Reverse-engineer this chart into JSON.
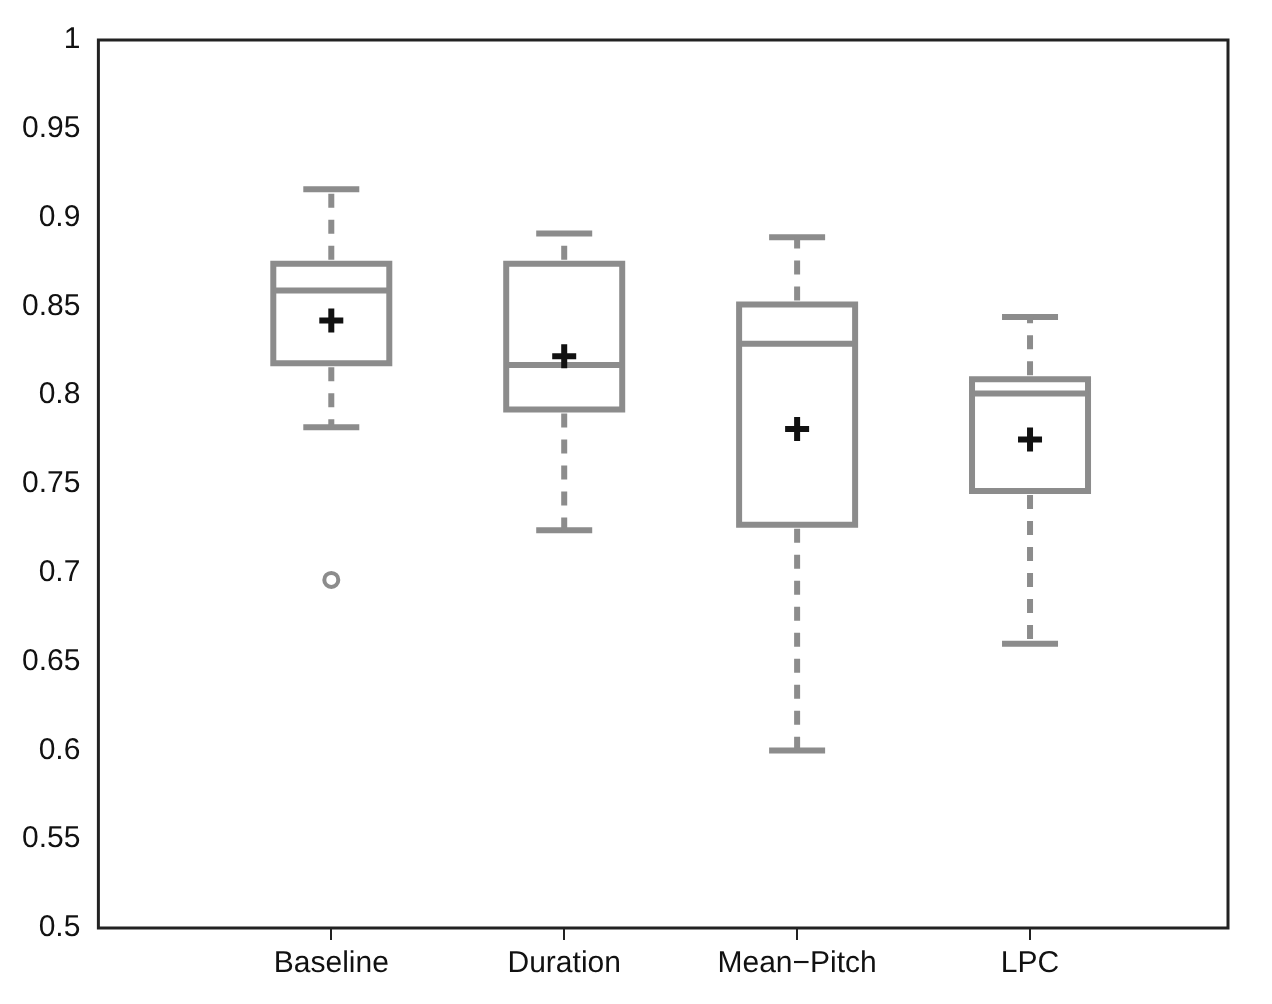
{
  "chart_data": {
    "type": "box",
    "categories": [
      "Baseline",
      "Duration",
      "Mean−Pitch",
      "LPC"
    ],
    "color": "#8c8c8c",
    "boxes": [
      {
        "low": 0.782,
        "q1": 0.818,
        "median": 0.859,
        "q3": 0.874,
        "high": 0.916,
        "mean": 0.842,
        "outliers": [
          0.696
        ]
      },
      {
        "low": 0.724,
        "q1": 0.792,
        "median": 0.817,
        "q3": 0.874,
        "high": 0.891,
        "mean": 0.822
      },
      {
        "low": 0.6,
        "q1": 0.727,
        "median": 0.829,
        "q3": 0.851,
        "high": 0.889,
        "mean": 0.781
      },
      {
        "low": 0.66,
        "q1": 0.746,
        "median": 0.801,
        "q3": 0.809,
        "high": 0.844,
        "mean": 0.775
      }
    ],
    "ylim": [
      0.5,
      1
    ],
    "yticks": [
      0.5,
      0.55,
      0.6,
      0.65,
      0.7,
      0.75,
      0.8,
      0.85,
      0.9,
      0.95,
      1
    ]
  }
}
